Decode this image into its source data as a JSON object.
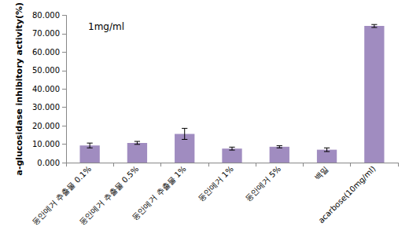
{
  "chart_data": {
    "type": "bar",
    "ylabel": "a-glucosidase inhibitory activity(%)",
    "annotation": "1mg/ml",
    "categories": [
      "동안메거 추출물 0.1%",
      "동안메거 추출물 0.5%",
      "동안메거 추출물 1%",
      "동안메거 1%",
      "동안메거 5%",
      "백밀",
      "acarbose(10mg/ml)"
    ],
    "values": [
      9.3,
      10.7,
      15.6,
      7.6,
      8.6,
      7.0,
      74.2
    ],
    "errors": [
      1.3,
      0.8,
      3.0,
      0.8,
      0.6,
      1.0,
      0.8
    ],
    "color": "#a08cc0",
    "ylim": [
      0,
      80
    ],
    "yticks": [
      {
        "value": 0,
        "label": "0.000"
      },
      {
        "value": 10,
        "label": "10.000"
      },
      {
        "value": 20,
        "label": "20.000"
      },
      {
        "value": 30,
        "label": "30.000"
      },
      {
        "value": 40,
        "label": "40.000"
      },
      {
        "value": 50,
        "label": "50.000"
      },
      {
        "value": 60,
        "label": "60.000"
      },
      {
        "value": 70,
        "label": "70.000"
      },
      {
        "value": 80,
        "label": "80.000"
      }
    ],
    "grid": false
  }
}
